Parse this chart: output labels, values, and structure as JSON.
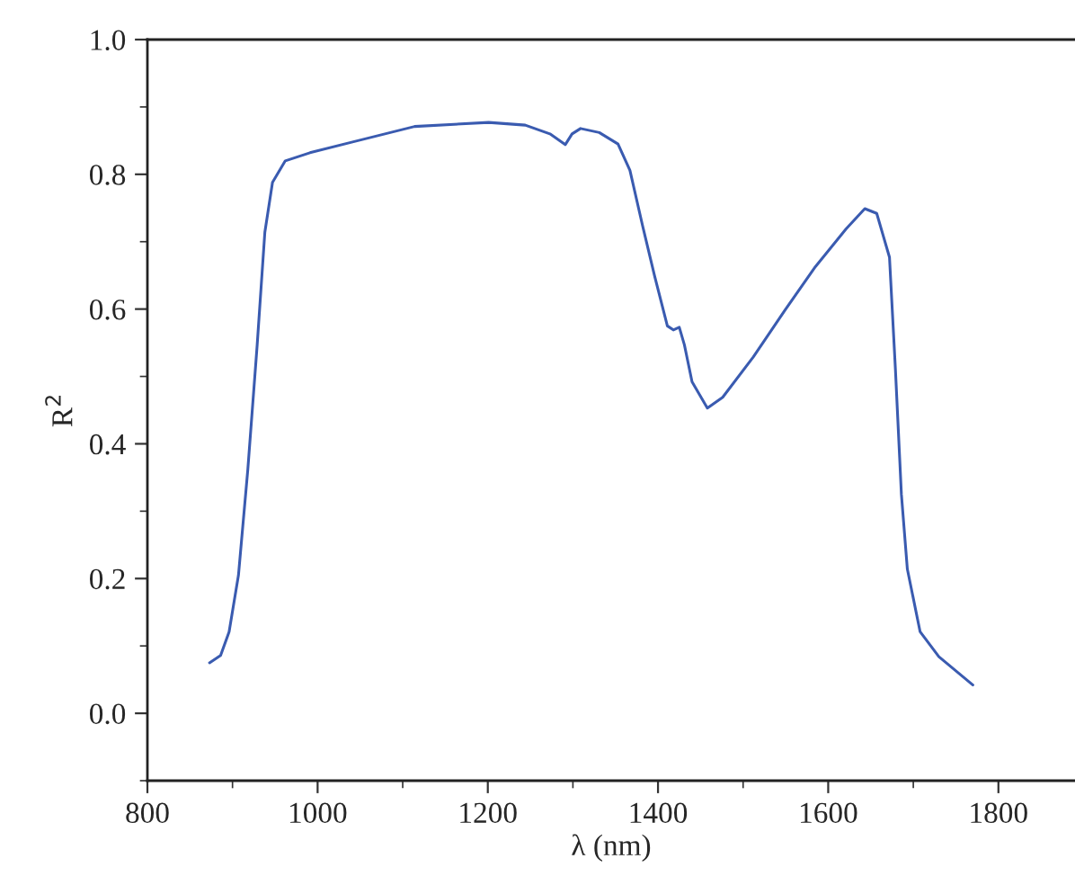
{
  "chart_data": {
    "type": "line",
    "xlabel": "λ (nm)",
    "ylabel": "R$^{2}$",
    "x": [
      873,
      886,
      896,
      907,
      918,
      929,
      938,
      947,
      962,
      991,
      1041,
      1114,
      1201,
      1244,
      1273,
      1291,
      1299,
      1309,
      1331,
      1353,
      1367,
      1382,
      1396,
      1411,
      1418,
      1425,
      1431,
      1440,
      1458,
      1476,
      1512,
      1549,
      1585,
      1621,
      1643,
      1657,
      1672,
      1679,
      1686,
      1693,
      1708,
      1730,
      1770
    ],
    "series": [
      {
        "color": "#3a5bb0",
        "values": [
          0.075,
          0.086,
          0.121,
          0.205,
          0.362,
          0.547,
          0.714,
          0.788,
          0.82,
          0.832,
          0.848,
          0.871,
          0.877,
          0.873,
          0.86,
          0.844,
          0.86,
          0.868,
          0.862,
          0.845,
          0.806,
          0.723,
          0.649,
          0.575,
          0.569,
          0.573,
          0.547,
          0.492,
          0.453,
          0.469,
          0.529,
          0.598,
          0.663,
          0.719,
          0.749,
          0.742,
          0.677,
          0.51,
          0.325,
          0.214,
          0.121,
          0.084,
          0.042
        ]
      }
    ],
    "xlim": [
      800,
      1890
    ],
    "xticks": [
      800,
      1000,
      1200,
      1400,
      1600,
      1800
    ],
    "ylim": [
      -0.1,
      1.0
    ],
    "yticks": [
      {
        "value": 0,
        "label": "0.0"
      },
      {
        "value": 0.2,
        "label": "0.2"
      },
      {
        "value": 0.4,
        "label": "0.4"
      },
      {
        "value": 0.6,
        "label": "0.6"
      },
      {
        "value": 0.8,
        "label": "0.8"
      },
      {
        "value": 1.0,
        "label": "1.0"
      }
    ],
    "grid": false,
    "legend": false,
    "marker": "none",
    "line_style": "solid"
  }
}
